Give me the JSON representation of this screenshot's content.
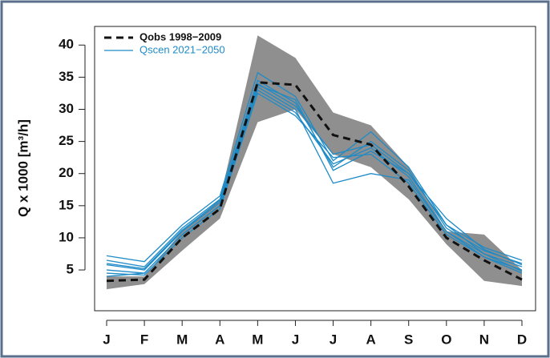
{
  "chart_data": {
    "type": "line",
    "y_label": "Q x 1000 [m³/h]",
    "categories": [
      "J",
      "F",
      "M",
      "A",
      "M",
      "J",
      "J",
      "A",
      "S",
      "O",
      "N",
      "D"
    ],
    "ylim": [
      -1.35,
      42.9
    ],
    "yticks": [
      5,
      10,
      15,
      20,
      25,
      30,
      35,
      40
    ],
    "band": {
      "color": "#8f8f8f",
      "upper": [
        4,
        4,
        11,
        16,
        41.5,
        38,
        29.5,
        27.5,
        21,
        11,
        10.5,
        5
      ],
      "lower": [
        2,
        2.8,
        8,
        13,
        28,
        30,
        23,
        21,
        16,
        9,
        3.3,
        2.5
      ]
    },
    "observed": {
      "name": "Qobs 1998−2009",
      "color": "#111111",
      "values": [
        3.3,
        3.5,
        10,
        14.5,
        34.2,
        33.8,
        26,
        24.5,
        18,
        10,
        6.5,
        3.5
      ]
    },
    "scenarios": {
      "name": "Qscen 2021−2050",
      "color": "#1f8bc7",
      "runs": [
        [
          7.2,
          6.3,
          12,
          16.5,
          35.7,
          32,
          22,
          26.5,
          21,
          12,
          8.5,
          6.5
        ],
        [
          6.5,
          5.5,
          11.5,
          16,
          34.5,
          31,
          21,
          25,
          20.5,
          11.5,
          8,
          6
        ],
        [
          5.8,
          5,
          11,
          15.5,
          33.5,
          30,
          18.5,
          20,
          19,
          11,
          7.5,
          5.5
        ],
        [
          5,
          4.5,
          10.5,
          15,
          33,
          29.5,
          21.5,
          24,
          19.5,
          11,
          7,
          5
        ],
        [
          4.5,
          4.2,
          10,
          14.5,
          32.5,
          29,
          22.5,
          23,
          18.5,
          10.5,
          7,
          4.5
        ],
        [
          4,
          4.5,
          10.5,
          15,
          34,
          30.5,
          23,
          24.5,
          20,
          12,
          7.5,
          4.8
        ],
        [
          6,
          5.2,
          11.2,
          15.8,
          33.8,
          31.5,
          20.5,
          23.5,
          20,
          13,
          8.2,
          5.8
        ]
      ]
    }
  }
}
